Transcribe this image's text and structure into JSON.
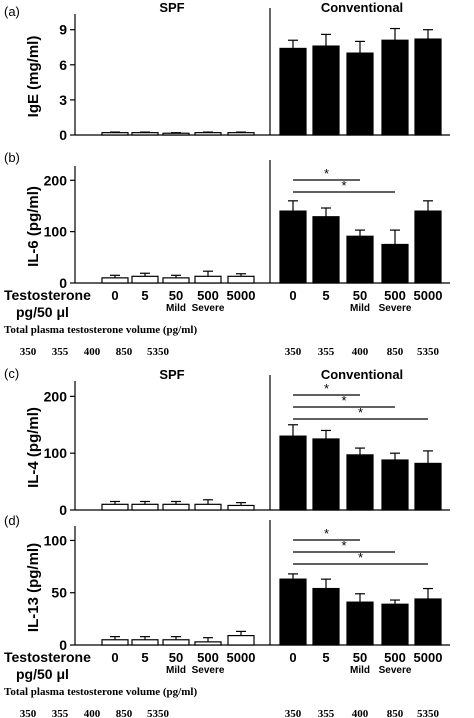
{
  "groups": [
    "SPF",
    "Conventional"
  ],
  "x_axis": {
    "row_label": "Testosterone",
    "row_label_line2": "pg/50 μl",
    "categories": [
      "0",
      "5",
      "50",
      "500",
      "5000"
    ],
    "sublabels": [
      "",
      "",
      "Mild",
      "Severe",
      ""
    ],
    "plasma_title": "Total plasma testosterone volume (pg/ml)",
    "plasma_spf": [
      "350",
      "355",
      "400",
      "850",
      "5350"
    ],
    "plasma_conv": [
      "350",
      "355",
      "400",
      "850",
      "5350"
    ]
  },
  "chart_data": [
    {
      "type": "bar",
      "panel": "(a)",
      "ylabel": "IgE (mg/ml)",
      "ylim": [
        0,
        10
      ],
      "yticks": [
        0,
        3,
        6,
        9
      ],
      "categories": [
        "0",
        "5",
        "50",
        "500",
        "5000"
      ],
      "series": [
        {
          "name": "SPF",
          "values": [
            0.2,
            0.2,
            0.15,
            0.2,
            0.2
          ],
          "errors": [
            0.05,
            0.05,
            0.05,
            0.05,
            0.05
          ],
          "fill": "#ffffff"
        },
        {
          "name": "Conventional",
          "values": [
            7.4,
            7.6,
            7.0,
            8.1,
            8.2
          ],
          "errors": [
            0.7,
            1.0,
            1.0,
            1.0,
            0.8
          ],
          "fill": "#000000"
        }
      ],
      "significance": [],
      "show_group_titles": true,
      "show_x_labels": false
    },
    {
      "type": "bar",
      "panel": "(b)",
      "ylabel": "IL-6 (pg/ml)",
      "ylim": [
        0,
        220
      ],
      "yticks": [
        0,
        100,
        200
      ],
      "categories": [
        "0",
        "5",
        "50",
        "500",
        "5000"
      ],
      "series": [
        {
          "name": "SPF",
          "values": [
            10,
            13,
            10,
            13,
            13
          ],
          "errors": [
            5,
            6,
            5,
            10,
            5
          ],
          "fill": "#ffffff"
        },
        {
          "name": "Conventional",
          "values": [
            140,
            129,
            91,
            75,
            140
          ],
          "errors": [
            20,
            17,
            12,
            28,
            20
          ],
          "fill": "#000000"
        }
      ],
      "significance": [
        {
          "from": 0,
          "to": 2,
          "label": "*"
        },
        {
          "from": 0,
          "to": 3,
          "label": "*"
        }
      ],
      "show_group_titles": false,
      "show_x_labels": true
    },
    {
      "type": "bar",
      "panel": "(c)",
      "ylabel": "IL-4 (pg/ml)",
      "ylim": [
        0,
        220
      ],
      "yticks": [
        0,
        100,
        200
      ],
      "categories": [
        "0",
        "5",
        "50",
        "500",
        "5000"
      ],
      "series": [
        {
          "name": "SPF",
          "values": [
            10,
            10,
            10,
            10,
            8
          ],
          "errors": [
            5,
            5,
            5,
            8,
            5
          ],
          "fill": "#ffffff"
        },
        {
          "name": "Conventional",
          "values": [
            130,
            125,
            97,
            88,
            82
          ],
          "errors": [
            20,
            15,
            12,
            12,
            22
          ],
          "fill": "#000000"
        }
      ],
      "significance": [
        {
          "from": 0,
          "to": 2,
          "label": "*"
        },
        {
          "from": 0,
          "to": 3,
          "label": "*"
        },
        {
          "from": 0,
          "to": 4,
          "label": "*"
        }
      ],
      "show_group_titles": true,
      "show_x_labels": false
    },
    {
      "type": "bar",
      "panel": "(d)",
      "ylabel": "IL-13 (pg/ml)",
      "ylim": [
        0,
        110
      ],
      "yticks": [
        0,
        50,
        100
      ],
      "categories": [
        "0",
        "5",
        "50",
        "500",
        "5000"
      ],
      "series": [
        {
          "name": "SPF",
          "values": [
            5,
            5,
            5,
            3,
            9
          ],
          "errors": [
            3,
            3,
            3,
            4,
            4
          ],
          "fill": "#ffffff"
        },
        {
          "name": "Conventional",
          "values": [
            63,
            54,
            41,
            39,
            44
          ],
          "errors": [
            5,
            9,
            8,
            4,
            10
          ],
          "fill": "#000000"
        }
      ],
      "significance": [
        {
          "from": 0,
          "to": 2,
          "label": "*"
        },
        {
          "from": 0,
          "to": 3,
          "label": "*"
        },
        {
          "from": 0,
          "to": 4,
          "label": "*"
        }
      ],
      "show_group_titles": false,
      "show_x_labels": true
    }
  ]
}
